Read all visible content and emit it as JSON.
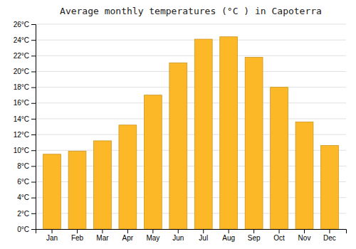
{
  "chart_data": {
    "type": "bar",
    "title": "Average monthly temperatures (°C ) in Capoterra",
    "categories": [
      "Jan",
      "Feb",
      "Mar",
      "Apr",
      "May",
      "Jun",
      "Jul",
      "Aug",
      "Sep",
      "Oct",
      "Nov",
      "Dec"
    ],
    "values": [
      9.5,
      9.9,
      11.2,
      13.2,
      17.0,
      21.1,
      24.1,
      24.4,
      21.8,
      18.0,
      13.6,
      10.6
    ],
    "color": "#FDB827",
    "ylim": [
      0,
      26
    ],
    "yticks": [
      {
        "value": 0,
        "label": "0°C"
      },
      {
        "value": 2,
        "label": "2°C"
      },
      {
        "value": 4,
        "label": "4°C"
      },
      {
        "value": 6,
        "label": "6°C"
      },
      {
        "value": 8,
        "label": "8°C"
      },
      {
        "value": 10,
        "label": "10°C"
      },
      {
        "value": 12,
        "label": "12°C"
      },
      {
        "value": 14,
        "label": "14°C"
      },
      {
        "value": 16,
        "label": "16°C"
      },
      {
        "value": 18,
        "label": "18°C"
      },
      {
        "value": 20,
        "label": "20°C"
      },
      {
        "value": 22,
        "label": "22°C"
      },
      {
        "value": 24,
        "label": "24°C"
      },
      {
        "value": 26,
        "label": "26°C"
      }
    ],
    "grid": true
  }
}
